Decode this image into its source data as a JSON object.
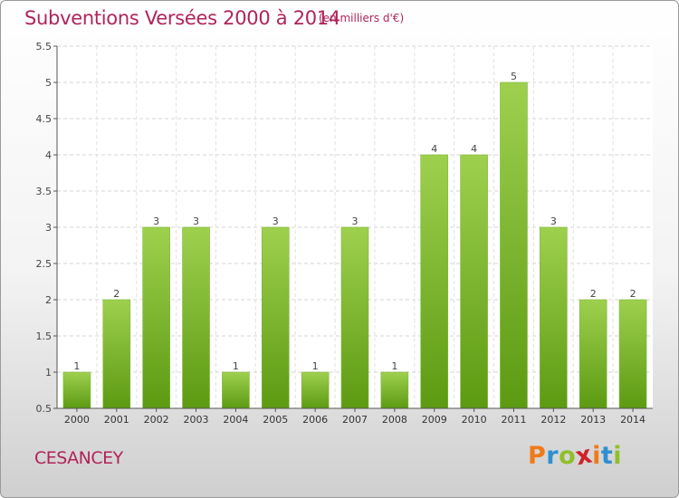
{
  "header": {
    "title": "Subventions Versées 2000 à 2014",
    "unit": "(en milliers d'€)"
  },
  "footer": {
    "commune": "CESANCEY",
    "logo": [
      "P",
      "r",
      "o",
      "x",
      "i",
      "t",
      "i"
    ],
    "logo_colors": [
      "#f07a1a",
      "#2f8fd0",
      "#8fbf2a",
      "#d0202a",
      "#f07a1a",
      "#2f8fd0",
      "#8fbf2a"
    ]
  },
  "colors": {
    "title": "#b0245a",
    "bar_light": "#9ed04e",
    "bar_dark": "#5c9a12"
  },
  "chart_data": {
    "type": "bar",
    "title": "Subventions Versées 2000 à 2014",
    "xlabel": "",
    "ylabel": "",
    "categories": [
      "2000",
      "2001",
      "2002",
      "2003",
      "2004",
      "2005",
      "2006",
      "2007",
      "2008",
      "2009",
      "2010",
      "2011",
      "2012",
      "2013",
      "2014"
    ],
    "values": [
      1,
      2,
      3,
      3,
      1,
      3,
      1,
      3,
      1,
      4,
      4,
      5,
      3,
      2,
      2
    ],
    "value_labels": [
      "1",
      "2",
      "3",
      "3",
      "1",
      "3",
      "1",
      "3",
      "1",
      "4",
      "4",
      "5",
      "3",
      "2",
      "2"
    ],
    "ylim": [
      0.5,
      5.5
    ],
    "yticks": [
      "0.5",
      "1",
      "1.5",
      "2",
      "2.5",
      "3",
      "3.5",
      "4",
      "4.5",
      "5",
      "5.5"
    ],
    "grid": true,
    "legend": "none"
  }
}
